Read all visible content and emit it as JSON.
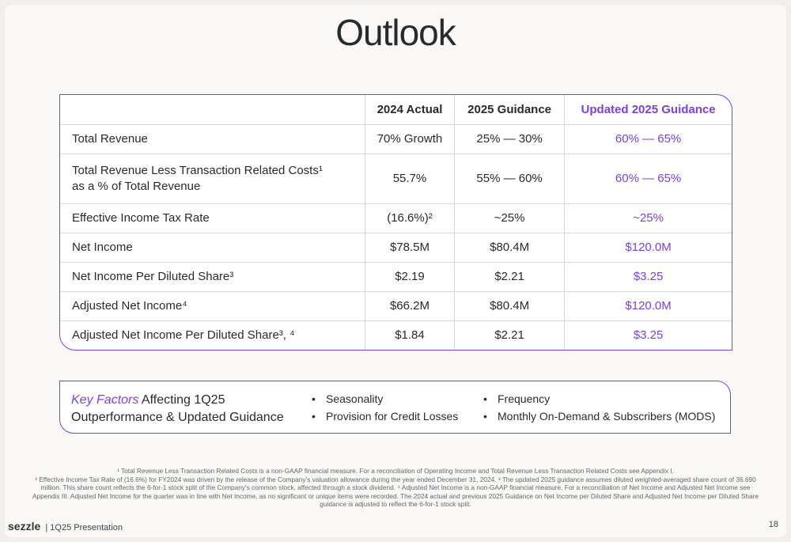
{
  "header": {
    "title": "Outlook"
  },
  "table": {
    "columns": [
      "2024 Actual",
      "2025 Guidance",
      "Updated 2025 Guidance"
    ],
    "rows": [
      [
        "Total Revenue",
        "70% Growth",
        "25% — 30%",
        "60% — 65%"
      ],
      [
        "Total Revenue Less Transaction Related Costs¹\nas a % of Total Revenue",
        "55.7%",
        "55% — 60%",
        "60% — 65%"
      ],
      [
        "Effective Income Tax Rate",
        "(16.6%)²",
        "~25%",
        "~25%"
      ],
      [
        "Net Income",
        "$78.5M",
        "$80.4M",
        "$120.0M"
      ],
      [
        "Net Income Per Diluted Share³",
        "$2.19",
        "$2.21",
        "$3.25"
      ],
      [
        "Adjusted Net Income⁴",
        "$66.2M",
        "$80.4M",
        "$120.0M"
      ],
      [
        "Adjusted Net Income Per Diluted Share³, ⁴",
        "$1.84",
        "$2.21",
        "$3.25"
      ]
    ]
  },
  "key_factors": {
    "highlight": "Key Factors",
    "title_rest": "Affecting 1Q25",
    "title_line2": "Outperformance & Updated Guidance",
    "bullets": [
      "Seasonality",
      "Provision for Credit Losses",
      "Frequency",
      "Monthly On-Demand & Subscribers (MODS)"
    ]
  },
  "footnotes": [
    "¹ Total Revenue Less Transaction Related Costs is a non-GAAP financial measure. For a reconciliation of Operating Income and Total Revenue Less Transaction Related Costs see Appendix I.",
    "² Effective Income Tax Rate of (16.6%) for FY2024 was driven by the release of the Company's valuation allowance during the year ended December 31, 2024. ³ The updated 2025 guidance assumes diluted weighted-averaged share count of 36.690 million. This share count reflects the 6-for-1 stock split of the Company's common stock, affected through a stock dividend. ⁴ Adjusted Net Income is a non-GAAP financial measure. For a reconciliation of Net Income and Adjusted Net Income see Appendix III. Adjusted Net Income for the quarter was in line with Net Income, as no significant or unique items were recorded. The 2024 actual and previous 2025 Guidance on Net Income per Diluted Share and Adjusted Net Income per Diluted Share guidance is adjusted to reflect the 6-for-1 stock split."
  ],
  "footer": {
    "logo": "sezzle",
    "presentation": "1Q25 Presentation",
    "page": "18"
  }
}
